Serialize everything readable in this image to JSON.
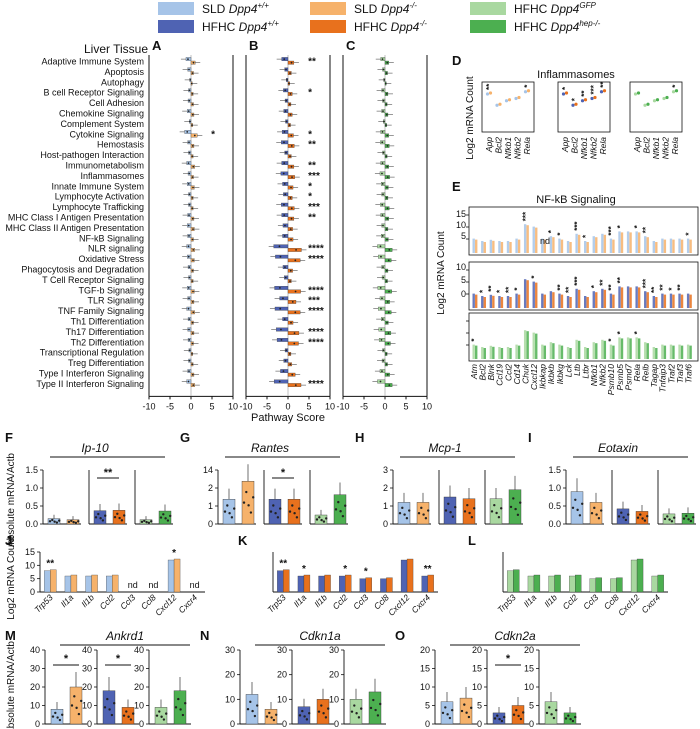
{
  "legend": [
    {
      "label": "SLD ",
      "gene": "Dpp4",
      "sup": "+/+",
      "color": "#a6c4e8"
    },
    {
      "label": "SLD ",
      "gene": "Dpp4",
      "sup": "-/-",
      "color": "#f6b26b"
    },
    {
      "label": "HFHC ",
      "gene": "Dpp4",
      "sup": "GFP",
      "color": "#a9d8a0"
    },
    {
      "label": "HFHC ",
      "gene": "Dpp4",
      "sup": "+/+",
      "color": "#4f63b3"
    },
    {
      "label": "HFHC ",
      "gene": "Dpp4",
      "sup": "-/-",
      "color": "#e8711d"
    },
    {
      "label": "HFHC ",
      "gene": "Dpp4",
      "sup": "hep-/-",
      "color": "#4caf50"
    }
  ],
  "top": {
    "section_title": "Liver Tissue",
    "panel_letters": [
      "A",
      "B",
      "C"
    ],
    "axis_ticks": [
      "-10",
      "-5",
      "0",
      "5",
      "10"
    ],
    "xlabel": "Pathway Score",
    "pathways": [
      "Adaptive Immune System",
      "Apoptosis",
      "Autophagy",
      "B cell Receptor Signaling",
      "Cell Adhesion",
      "Chemokine Signaling",
      "Complement System",
      "Cytokine Signaling",
      "Hemostasis",
      "Host-pathogen Interaction",
      "Immunometabolism",
      "Inflammasomes",
      "Innate Immune System",
      "Lymphocyte Activation",
      "Lymphocyte Trafficking",
      "MHC Class I Antigen Presentation",
      "MHC Class II Antigen Presentation",
      "NF-kB Signaling",
      "NLR signaling",
      "Oxidative Stress",
      "Phagocytosis and Degradation",
      "T Cell Receptor Signaling",
      "TGF-b Signaling",
      "TLR Signaling",
      "TNF Family Signaling",
      "Th1 Differentiation",
      "Th17 Differentiation",
      "Th2 Differentiation",
      "Transcriptional Regulation",
      "Treg Differentiation",
      "Type I Interferon Signaling",
      "Type II Interferon Signaling"
    ],
    "panel_A_stars": {
      "7": "*"
    },
    "panel_B_stars": {
      "0": "**",
      "3": "*",
      "7": "*",
      "8": "**",
      "10": "**",
      "11": "***",
      "12": "*",
      "13": "*",
      "14": "***",
      "15": "**",
      "18": "****",
      "19": "****",
      "22": "****",
      "23": "***",
      "24": "****",
      "26": "****",
      "27": "****",
      "31": "****"
    }
  },
  "inflammasomes": {
    "letter": "D",
    "title": "Inflammasomes",
    "ylabel": "Log2 mRNA Count",
    "genes": [
      "App",
      "Bcl2",
      "Nfkb1",
      "Nfkb2",
      "Rela"
    ]
  },
  "nfkb": {
    "letter": "E",
    "title": "NF-kB Signaling",
    "ylabel": "Log2 mRNA Count",
    "ticks": [
      "15",
      "10",
      "5",
      "0"
    ],
    "genes": [
      "Atm",
      "Bcl2",
      "Blnk",
      "Ccl19",
      "Ccl2",
      "Cd14",
      "Chuk",
      "Cxcl12",
      "Ikbkap",
      "Ikbkb",
      "Ikbkg",
      "Lck",
      "Ltb",
      "Ltbr",
      "Nfkb1",
      "Nfkb2",
      "Psmb10",
      "Psmb5",
      "Psmd7",
      "Rela",
      "Relb",
      "Tagap",
      "Tnfaip3",
      "Traf2",
      "Traf3",
      "Traf6"
    ],
    "nd": "nd"
  },
  "panels_F_I": [
    {
      "letter": "F",
      "title": "Ip-10",
      "ticks": [
        "1.5",
        "1.0",
        "0.5",
        "0.0"
      ],
      "stars": "**"
    },
    {
      "letter": "G",
      "title": "Rantes",
      "ticks": [
        "14",
        "2",
        "1",
        "0"
      ],
      "stars": "*"
    },
    {
      "letter": "H",
      "title": "Mcp-1",
      "ticks": [
        "3",
        "2",
        "1",
        "0"
      ],
      "stars": ""
    },
    {
      "letter": "I",
      "title": "Eotaxin",
      "ticks": [
        "1.5",
        "1.0",
        "0.5",
        "0.0"
      ],
      "stars": ""
    }
  ],
  "row_FI_ylabel": "Absolute mRNA/Actb",
  "panels_J_L": {
    "letters": [
      "J",
      "K",
      "L"
    ],
    "genes": [
      "Trp53",
      "Il1a",
      "Il1b",
      "Ccl2",
      "Ccl3",
      "Ccl8",
      "Cxcl12",
      "Cxcr4"
    ],
    "ticks": [
      "15",
      "10",
      "5",
      "0"
    ],
    "ylabel": "Log2 mRNA Count",
    "nd": "nd",
    "J_stars": {
      "0": "**",
      "6": "*"
    },
    "K_stars": {
      "0": "**",
      "1": "*",
      "3": "*",
      "4": "*",
      "7": "**"
    }
  },
  "panels_M_O": [
    {
      "letter": "M",
      "title": "Ankrd1",
      "ticks": [
        "40",
        "30",
        "20",
        "10",
        "0"
      ],
      "stars": "*"
    },
    {
      "letter": "N",
      "title": "Cdkn1a",
      "ticks": [
        "30",
        "20",
        "10",
        "0"
      ],
      "stars": ""
    },
    {
      "letter": "O",
      "title": "Cdkn2a",
      "ticks": [
        "20",
        "15",
        "10",
        "5",
        "0"
      ],
      "stars": "*"
    }
  ],
  "row_MO_ylabel": "Absolute mRNA/Actb",
  "chart_data": [
    {
      "type": "bar",
      "panel": "A",
      "orientation": "horizontal",
      "xlabel": "Pathway Score",
      "xlim": [
        -10,
        10
      ],
      "series": [
        {
          "name": "SLD Dpp4+/+",
          "values": [
            -1.2,
            -0.8,
            -0.3,
            -0.6,
            -0.7,
            -0.9,
            -0.4,
            -1.5,
            -0.8,
            -0.6,
            -1.0,
            -0.7,
            -0.9,
            -0.6,
            -0.6,
            -0.8,
            -0.9,
            -0.8,
            -1.0,
            -0.9,
            -0.7,
            -0.6,
            -0.9,
            -0.8,
            -1.0,
            -0.7,
            -0.8,
            -0.7,
            -0.5,
            -0.6,
            -0.8,
            -1.0
          ]
        },
        {
          "name": "SLD Dpp4-/-",
          "values": [
            1.0,
            0.6,
            0.3,
            0.5,
            0.6,
            0.7,
            0.4,
            1.5,
            0.7,
            0.5,
            0.9,
            0.6,
            0.8,
            0.5,
            0.5,
            0.7,
            0.8,
            0.6,
            0.9,
            0.8,
            0.6,
            0.5,
            0.8,
            0.7,
            0.9,
            0.6,
            0.7,
            0.6,
            0.4,
            0.5,
            0.7,
            0.9
          ]
        }
      ]
    },
    {
      "type": "bar",
      "panel": "B",
      "orientation": "horizontal",
      "xlabel": "Pathway Score",
      "xlim": [
        -10,
        10
      ],
      "series": [
        {
          "name": "HFHC Dpp4+/+",
          "values": [
            -1.5,
            -0.8,
            -0.4,
            -1.1,
            -0.7,
            -1.0,
            -0.6,
            -1.4,
            -1.6,
            -0.8,
            -1.5,
            -1.7,
            -1.3,
            -1.1,
            -1.6,
            -1.5,
            -1.2,
            -1.3,
            -3.4,
            -3.0,
            -1.2,
            -0.9,
            -3.2,
            -2.0,
            -3.1,
            -1.3,
            -2.8,
            -2.6,
            -0.7,
            -1.0,
            -1.8,
            -3.3
          ]
        },
        {
          "name": "HFHC Dpp4-/-",
          "values": [
            1.4,
            0.8,
            0.4,
            1.0,
            0.7,
            1.0,
            0.6,
            1.3,
            1.5,
            0.8,
            1.4,
            1.6,
            1.2,
            1.0,
            1.5,
            1.4,
            1.1,
            1.2,
            3.2,
            2.9,
            1.1,
            0.8,
            3.0,
            1.9,
            2.9,
            1.2,
            2.6,
            2.5,
            0.7,
            0.9,
            1.7,
            3.1
          ]
        }
      ]
    },
    {
      "type": "bar",
      "panel": "C",
      "orientation": "horizontal",
      "xlabel": "Pathway Score",
      "xlim": [
        -10,
        10
      ],
      "series": [
        {
          "name": "HFHC Dpp4GFP",
          "values": [
            -1.0,
            -0.6,
            -0.3,
            -0.8,
            -0.6,
            -0.8,
            -0.4,
            -1.0,
            -1.1,
            -0.6,
            -1.0,
            -1.2,
            -0.9,
            -0.8,
            -1.1,
            -1.0,
            -0.8,
            -0.9,
            -1.8,
            -1.6,
            -0.8,
            -0.7,
            -1.7,
            -1.2,
            -1.6,
            -0.9,
            -1.5,
            -1.4,
            -0.6,
            -0.7,
            -1.2,
            -1.8
          ]
        },
        {
          "name": "HFHC Dpp4hep-/-",
          "values": [
            0.9,
            0.6,
            0.3,
            0.7,
            0.5,
            0.7,
            0.4,
            0.9,
            1.0,
            0.5,
            0.9,
            1.1,
            0.8,
            0.7,
            1.0,
            0.9,
            0.7,
            0.8,
            1.7,
            1.5,
            0.7,
            0.6,
            1.6,
            1.1,
            1.5,
            0.8,
            1.4,
            1.3,
            0.5,
            0.6,
            1.1,
            1.7
          ]
        }
      ]
    },
    {
      "type": "bar",
      "panel": "F",
      "title": "Ip-10",
      "ylabel": "Absolute mRNA/Actb",
      "ylim": [
        0,
        1.5
      ],
      "series": [
        {
          "name": "SLD Dpp4+/+",
          "values": [
            0.15
          ]
        },
        {
          "name": "SLD Dpp4-/-",
          "values": [
            0.12
          ]
        },
        {
          "name": "HFHC Dpp4+/+",
          "values": [
            0.12
          ]
        },
        {
          "name": "HFHC Dpp4-/-",
          "values": [
            0.37
          ]
        },
        {
          "name": "HFHC Dpp4GFP",
          "values": [
            0.38
          ]
        },
        {
          "name": "HFHC Dpp4hep-/-",
          "values": [
            0.36
          ]
        }
      ]
    },
    {
      "type": "bar",
      "panel": "G",
      "title": "Rantes",
      "ylabel": "Absolute mRNA/Actb",
      "series": [
        {
          "name": "SLD Dpp4+/+",
          "values": [
            0.55
          ]
        },
        {
          "name": "SLD Dpp4-/-",
          "values": [
            0.95
          ]
        },
        {
          "name": "HFHC Dpp4+/+",
          "values": [
            0.2
          ]
        },
        {
          "name": "HFHC Dpp4-/-",
          "values": [
            0.55
          ]
        },
        {
          "name": "HFHC Dpp4GFP",
          "values": [
            0.55
          ]
        },
        {
          "name": "HFHC Dpp4hep-/-",
          "values": [
            0.65
          ]
        }
      ]
    },
    {
      "type": "bar",
      "panel": "H",
      "title": "Mcp-1",
      "ylim": [
        0,
        3
      ],
      "series": [
        {
          "name": "SLD Dpp4+/+",
          "values": [
            1.2
          ]
        },
        {
          "name": "SLD Dpp4-/-",
          "values": [
            1.2
          ]
        },
        {
          "name": "HFHC Dpp4+/+",
          "values": [
            1.4
          ]
        },
        {
          "name": "HFHC Dpp4-/-",
          "values": [
            1.5
          ]
        },
        {
          "name": "HFHC Dpp4GFP",
          "values": [
            1.4
          ]
        },
        {
          "name": "HFHC Dpp4hep-/-",
          "values": [
            1.9
          ]
        }
      ]
    },
    {
      "type": "bar",
      "panel": "I",
      "title": "Eotaxin",
      "ylim": [
        0,
        1.5
      ],
      "series": [
        {
          "name": "SLD Dpp4+/+",
          "values": [
            0.9
          ]
        },
        {
          "name": "SLD Dpp4-/-",
          "values": [
            0.6
          ]
        },
        {
          "name": "HFHC Dpp4+/+",
          "values": [
            0.28
          ]
        },
        {
          "name": "HFHC Dpp4-/-",
          "values": [
            0.42
          ]
        },
        {
          "name": "HFHC Dpp4GFP",
          "values": [
            0.35
          ]
        },
        {
          "name": "HFHC Dpp4hep-/-",
          "values": [
            0.3
          ]
        }
      ]
    },
    {
      "type": "bar",
      "panel": "M",
      "title": "Ankrd1",
      "ylim": [
        0,
        40
      ],
      "series": [
        {
          "name": "SLD Dpp4+/+",
          "values": [
            8
          ]
        },
        {
          "name": "SLD Dpp4-/-",
          "values": [
            20
          ]
        },
        {
          "name": "HFHC Dpp4+/+",
          "values": [
            9
          ]
        },
        {
          "name": "HFHC Dpp4-/-",
          "values": [
            18
          ]
        },
        {
          "name": "HFHC Dpp4GFP",
          "values": [
            9
          ]
        },
        {
          "name": "HFHC Dpp4hep-/-",
          "values": [
            18
          ]
        }
      ]
    },
    {
      "type": "bar",
      "panel": "N",
      "title": "Cdkn1a",
      "ylim": [
        0,
        30
      ],
      "series": [
        {
          "name": "SLD Dpp4+/+",
          "values": [
            12
          ]
        },
        {
          "name": "SLD Dpp4-/-",
          "values": [
            6
          ]
        },
        {
          "name": "HFHC Dpp4+/+",
          "values": [
            10
          ]
        },
        {
          "name": "HFHC Dpp4-/-",
          "values": [
            7
          ]
        },
        {
          "name": "HFHC Dpp4GFP",
          "values": [
            10
          ]
        },
        {
          "name": "HFHC Dpp4hep-/-",
          "values": [
            13
          ]
        }
      ]
    },
    {
      "type": "bar",
      "panel": "O",
      "title": "Cdkn2a",
      "ylim": [
        0,
        20
      ],
      "series": [
        {
          "name": "SLD Dpp4+/+",
          "values": [
            6
          ]
        },
        {
          "name": "SLD Dpp4-/-",
          "values": [
            7
          ]
        },
        {
          "name": "HFHC Dpp4+/+",
          "values": [
            6
          ]
        },
        {
          "name": "HFHC Dpp4-/-",
          "values": [
            3
          ]
        },
        {
          "name": "HFHC Dpp4GFP",
          "values": [
            5
          ]
        },
        {
          "name": "HFHC Dpp4hep-/-",
          "values": [
            3
          ]
        }
      ]
    }
  ]
}
